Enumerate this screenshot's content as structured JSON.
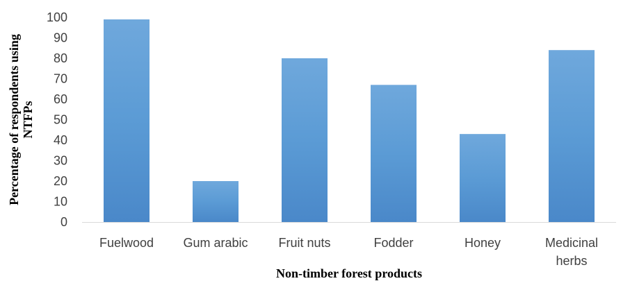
{
  "chart_data": {
    "type": "bar",
    "categories": [
      "Fuelwood",
      "Gum arabic",
      "Fruit nuts",
      "Fodder",
      "Honey",
      "Medicinal herbs"
    ],
    "category_lines": [
      [
        "Fuelwood"
      ],
      [
        "Gum arabic"
      ],
      [
        "Fruit nuts"
      ],
      [
        "Fodder"
      ],
      [
        "Honey"
      ],
      [
        "Medicinal",
        "herbs"
      ]
    ],
    "values": [
      99,
      20,
      80,
      67,
      43,
      84
    ],
    "xlabel": "Non-timber forest products",
    "ylabel": "Percentage of respondents using NTFPs",
    "ylabel_lines": [
      "Percentage of respondents using",
      "NTFPs"
    ],
    "ylim": [
      0,
      100
    ],
    "yticks": [
      0,
      10,
      20,
      30,
      40,
      50,
      60,
      70,
      80,
      90,
      100
    ],
    "grid": false,
    "legend": "none",
    "colors": {
      "bar_top": "#6fa8dc",
      "bar_mid": "#5b9bd5",
      "bar_bottom": "#4a88c9",
      "axis": "#d9d9d9"
    }
  }
}
